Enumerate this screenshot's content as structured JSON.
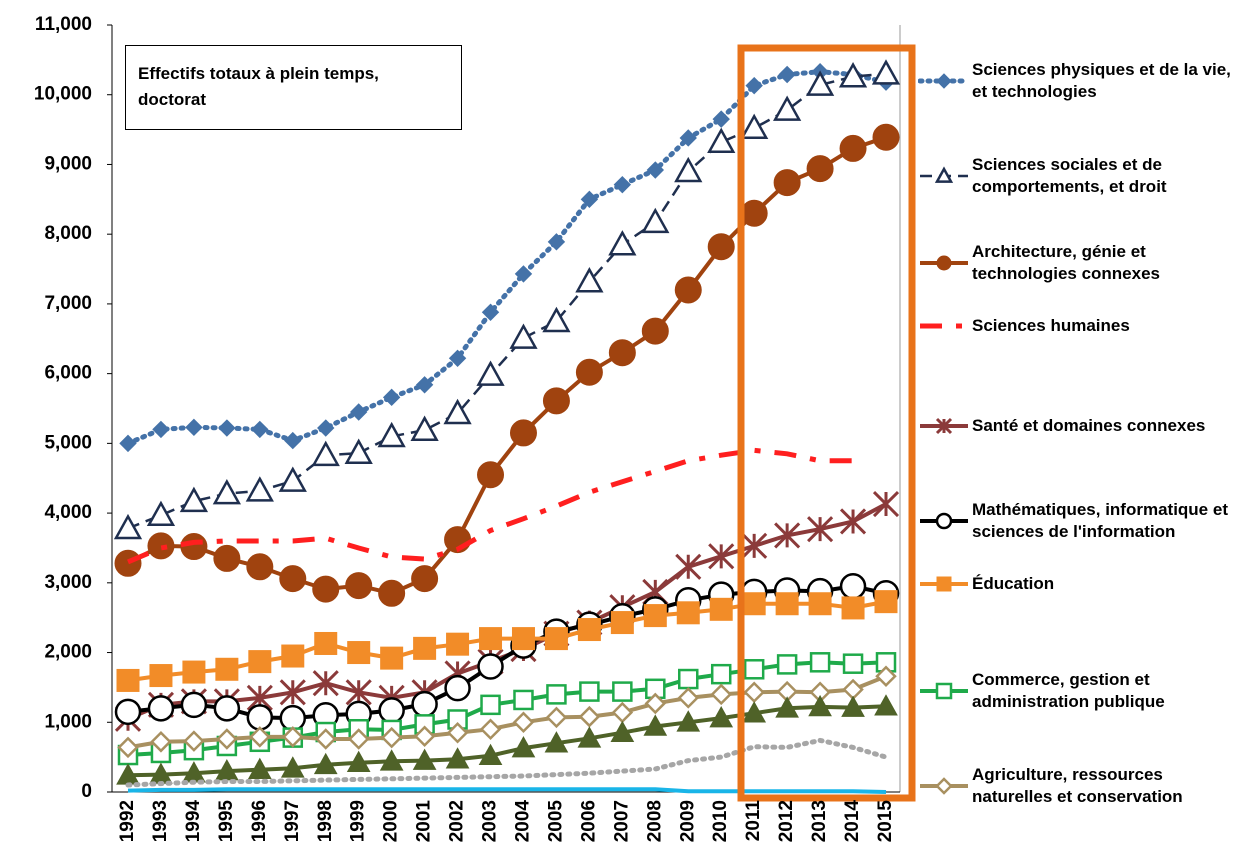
{
  "chart_data": {
    "type": "line",
    "annotation": "Effectifs totaux à plein temps, doctorat",
    "categories": [
      "1992",
      "1993",
      "1994",
      "1995",
      "1996",
      "1997",
      "1998",
      "1999",
      "2000",
      "2001",
      "2002",
      "2003",
      "2004",
      "2005",
      "2006",
      "2007",
      "2008",
      "2009",
      "2010",
      "2011",
      "2012",
      "2013",
      "2014",
      "2015"
    ],
    "ylim": [
      0,
      11000
    ],
    "yticks": [
      {
        "value": 0,
        "label": "0"
      },
      {
        "value": 1000,
        "label": "1,000"
      },
      {
        "value": 2000,
        "label": "2,000"
      },
      {
        "value": 3000,
        "label": "3,000"
      },
      {
        "value": 4000,
        "label": "4,000"
      },
      {
        "value": 5000,
        "label": "5,000"
      },
      {
        "value": 6000,
        "label": "6,000"
      },
      {
        "value": 7000,
        "label": "7,000"
      },
      {
        "value": 8000,
        "label": "8,000"
      },
      {
        "value": 9000,
        "label": "9,000"
      },
      {
        "value": 10000,
        "label": "10,000"
      },
      {
        "value": 11000,
        "label": "11,000"
      }
    ],
    "grid": false,
    "legend": "right",
    "series": [
      {
        "name": "Sciences physiques et de la vie, et technologies",
        "color": "#4472a8",
        "marker": "diamond",
        "dash": "dot",
        "values": [
          5000,
          5200,
          5230,
          5220,
          5200,
          5040,
          5220,
          5450,
          5660,
          5840,
          6220,
          6880,
          7430,
          7890,
          8500,
          8710,
          8920,
          9380,
          9650,
          10130,
          10290,
          10330,
          10290,
          10180
        ]
      },
      {
        "name": "Sciences sociales et de comportements, et droit",
        "color": "#1f2f4f",
        "marker": "triangle-open",
        "dash": "dash",
        "values": [
          3780,
          3970,
          4170,
          4280,
          4320,
          4460,
          4830,
          4860,
          5100,
          5190,
          5430,
          5980,
          6510,
          6750,
          7320,
          7850,
          8170,
          8900,
          9320,
          9520,
          9780,
          10140,
          10260,
          10300
        ]
      },
      {
        "name": "Architecture, génie et technologies connexes",
        "color": "#a0430f",
        "marker": "circle",
        "dash": "solid",
        "values": [
          3280,
          3530,
          3520,
          3350,
          3230,
          3060,
          2910,
          2960,
          2850,
          3060,
          3620,
          4550,
          5150,
          5610,
          6020,
          6300,
          6610,
          7200,
          7820,
          8300,
          8740,
          8940,
          9230,
          9390
        ]
      },
      {
        "name": "Sciences humaines",
        "color": "#ff1f1f",
        "marker": "none",
        "dash": "dashdot",
        "values": [
          3300,
          3500,
          3580,
          3600,
          3600,
          3600,
          3640,
          3500,
          3370,
          3340,
          3480,
          3750,
          3920,
          4100,
          4300,
          4450,
          4600,
          4750,
          4830,
          4900,
          4850,
          4750,
          4750,
          null
        ]
      },
      {
        "name": "Santé et domaines connexes",
        "color": "#8b3a3a",
        "marker": "star",
        "dash": "solid",
        "values": [
          1050,
          1250,
          1300,
          1300,
          1350,
          1430,
          1560,
          1430,
          1350,
          1430,
          1700,
          1870,
          2050,
          2270,
          2430,
          2650,
          2870,
          3230,
          3380,
          3530,
          3680,
          3770,
          3880,
          4130
        ]
      },
      {
        "name": "Mathématiques, informatique et sciences de l'information",
        "color": "#000000",
        "marker": "circle-open",
        "dash": "solid",
        "values": [
          1150,
          1200,
          1250,
          1200,
          1070,
          1060,
          1100,
          1120,
          1170,
          1260,
          1490,
          1800,
          2100,
          2300,
          2400,
          2520,
          2620,
          2750,
          2830,
          2870,
          2890,
          2880,
          2950,
          2850
        ]
      },
      {
        "name": "Éducation",
        "color": "#f28c28",
        "marker": "square",
        "dash": "solid",
        "values": [
          1600,
          1670,
          1720,
          1760,
          1870,
          1950,
          2130,
          2000,
          1920,
          2060,
          2120,
          2200,
          2200,
          2200,
          2330,
          2430,
          2530,
          2570,
          2620,
          2700,
          2700,
          2700,
          2640,
          2730
        ]
      },
      {
        "name": "Commerce, gestion et administration publique",
        "color": "#1faa4a",
        "marker": "square-open",
        "dash": "solid",
        "values": [
          530,
          560,
          600,
          660,
          720,
          780,
          860,
          900,
          890,
          970,
          1040,
          1250,
          1320,
          1400,
          1440,
          1440,
          1480,
          1620,
          1690,
          1760,
          1830,
          1860,
          1840,
          1860
        ]
      },
      {
        "name": "Agriculture, ressources naturelles et conservation",
        "color": "#a89060",
        "marker": "diamond-open",
        "dash": "solid",
        "values": [
          640,
          720,
          730,
          760,
          790,
          790,
          760,
          760,
          780,
          800,
          850,
          900,
          1000,
          1070,
          1080,
          1140,
          1270,
          1350,
          1400,
          1430,
          1440,
          1430,
          1470,
          1660
        ]
      },
      {
        "color": "#4f6228",
        "marker": "triangle",
        "dash": "solid",
        "values": [
          240,
          250,
          270,
          300,
          320,
          340,
          390,
          420,
          440,
          450,
          470,
          520,
          630,
          700,
          770,
          850,
          940,
          1000,
          1060,
          1130,
          1200,
          1220,
          1210,
          1230
        ]
      },
      {
        "color": "#a6a6a6",
        "marker": "none",
        "dash": "dot",
        "values": [
          100,
          120,
          140,
          150,
          150,
          160,
          170,
          180,
          190,
          200,
          210,
          220,
          230,
          250,
          270,
          300,
          330,
          450,
          500,
          650,
          640,
          740,
          640,
          500
        ]
      },
      {
        "color": "#19b5e8",
        "marker": "none",
        "dash": "solid",
        "values": [
          20,
          30,
          30,
          40,
          40,
          40,
          40,
          40,
          40,
          40,
          40,
          40,
          40,
          40,
          40,
          40,
          40,
          10,
          10,
          10,
          10,
          10,
          10,
          0
        ]
      }
    ]
  }
}
